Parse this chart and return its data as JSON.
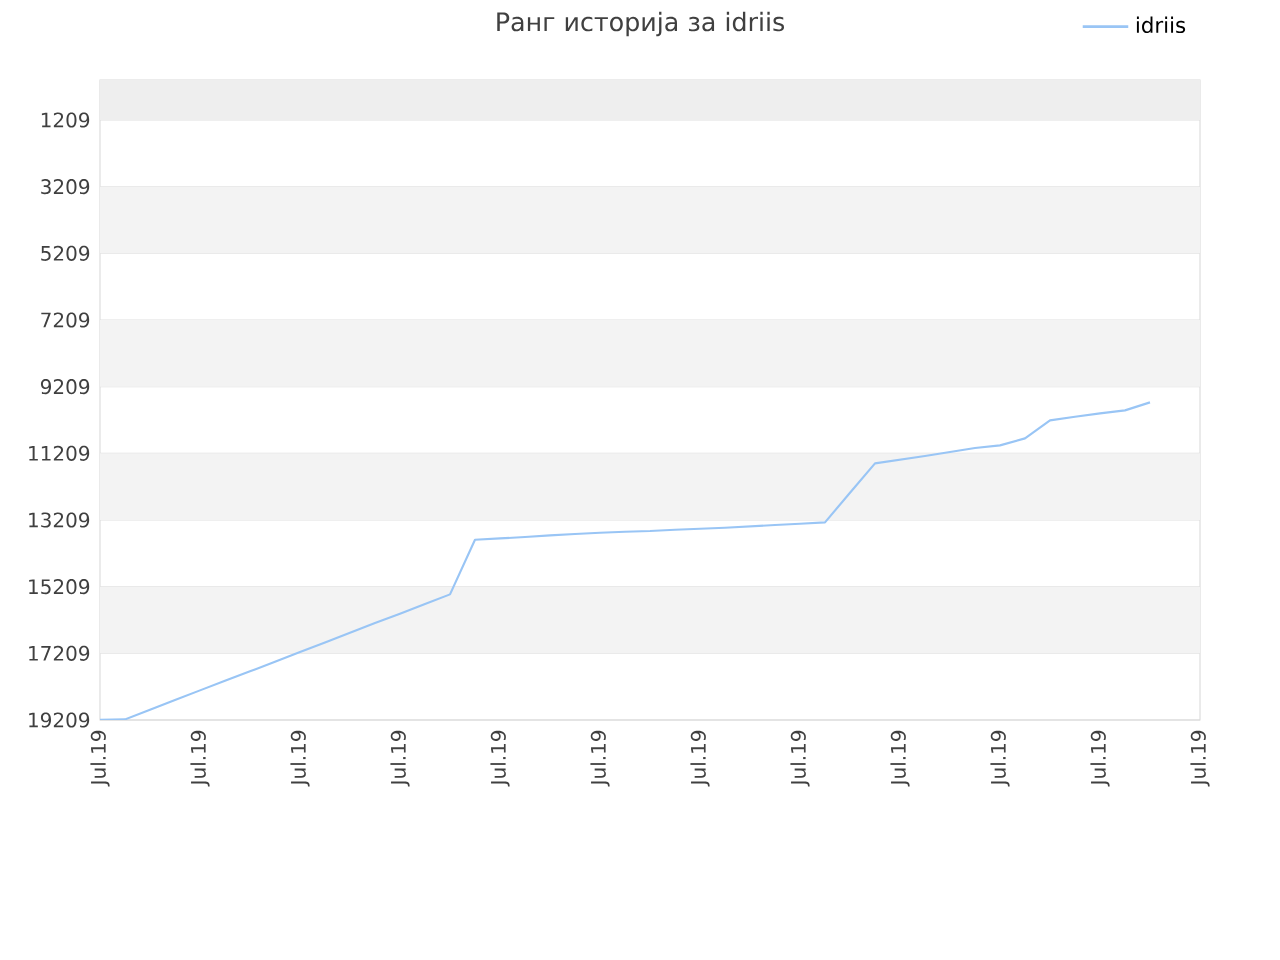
{
  "chart_data": {
    "type": "line",
    "title": "Ранг историја за idriis",
    "categories": [
      "Jul.19",
      null,
      null,
      null,
      "Jul.19",
      null,
      null,
      null,
      "Jul.19",
      null,
      null,
      null,
      "Jul.19",
      null,
      null,
      null,
      "Jul.19",
      null,
      null,
      null,
      "Jul.19",
      null,
      null,
      null,
      "Jul.19",
      null,
      null,
      null,
      "Jul.19",
      null,
      null,
      null,
      "Jul.19",
      null,
      null,
      null,
      "Jul.19",
      null,
      null,
      null,
      "Jul.19",
      null,
      null,
      null,
      "Jul.19"
    ],
    "series": [
      {
        "name": "idriis",
        "color": "#99c5f5",
        "values": [
          19200,
          19190,
          18900,
          18610,
          18320,
          18030,
          17750,
          17460,
          17170,
          16880,
          16590,
          16300,
          16020,
          15730,
          15440,
          13800,
          13760,
          13720,
          13670,
          13630,
          13590,
          13560,
          13540,
          13500,
          13470,
          13440,
          13400,
          13360,
          13320,
          13280,
          12390,
          11510,
          11400,
          11290,
          11170,
          11050,
          10970,
          10760,
          10220,
          10110,
          10010,
          9920,
          9680,
          null,
          null
        ]
      }
    ],
    "ylim": [
      19209,
      9
    ],
    "yticks": [
      1209,
      3209,
      5209,
      7209,
      9209,
      11209,
      13209,
      15209,
      17209,
      19209
    ],
    "bands": [
      {
        "axis": "y",
        "from": 9,
        "to": 1209,
        "color": "#eeeeee"
      },
      {
        "axis": "y",
        "from": 3209,
        "to": 5209,
        "color": "#f3f3f3"
      },
      {
        "axis": "y",
        "from": 7209,
        "to": 9209,
        "color": "#f3f3f3"
      },
      {
        "axis": "y",
        "from": 11209,
        "to": 13209,
        "color": "#f3f3f3"
      },
      {
        "axis": "y",
        "from": 15209,
        "to": 17209,
        "color": "#f3f3f3"
      }
    ],
    "grid": "y",
    "legend": "top right",
    "marker": "none",
    "line_style": "solid"
  }
}
